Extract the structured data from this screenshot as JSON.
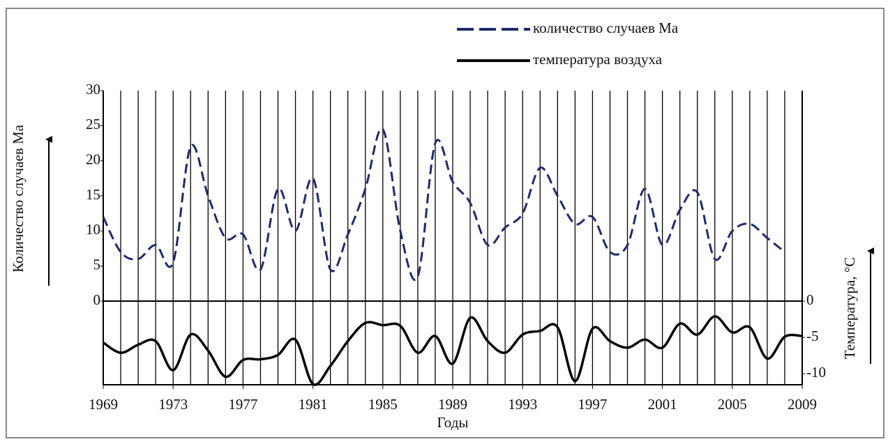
{
  "chart_data": {
    "type": "line",
    "xlabel": "Годы",
    "ylabel": "Количество случаев Ма",
    "y2label": "Температура, °С",
    "x": [
      1969,
      1970,
      1971,
      1972,
      1973,
      1974,
      1975,
      1976,
      1977,
      1978,
      1979,
      1980,
      1981,
      1982,
      1983,
      1984,
      1985,
      1986,
      1987,
      1988,
      1989,
      1990,
      1991,
      1992,
      1993,
      1994,
      1995,
      1996,
      1997,
      1998,
      1999,
      2000,
      2001,
      2002,
      2003,
      2004,
      2005,
      2006,
      2007,
      2008,
      2009
    ],
    "xlim": [
      1969,
      2009
    ],
    "xticks": [
      1969,
      1973,
      1977,
      1981,
      1985,
      1989,
      1993,
      1997,
      2001,
      2005,
      2009
    ],
    "ylim": [
      0,
      30
    ],
    "yticks": [
      0,
      5,
      10,
      15,
      20,
      25,
      30
    ],
    "y2lim": [
      -11.5,
      0
    ],
    "y2ticks": [
      0,
      -5,
      -10
    ],
    "grid": true,
    "series": [
      {
        "name": "количество случаев Ма",
        "color": "#1f2a6b",
        "dash": true,
        "values": [
          12,
          7,
          6,
          8,
          5.5,
          22,
          15,
          9,
          9.5,
          4.5,
          16,
          10,
          17.5,
          4.5,
          9.5,
          16,
          24.5,
          10,
          3.5,
          22.5,
          17,
          14,
          8,
          10.5,
          12.5,
          19,
          15,
          11,
          12,
          7,
          8,
          16,
          8,
          13,
          15.5,
          6,
          10,
          11,
          9,
          7,
          null
        ]
      },
      {
        "name": "температура воздуха",
        "color": "#000000",
        "dash": false,
        "axis": "y2",
        "values": [
          -5.7,
          -7.1,
          -6,
          -5.5,
          -9.5,
          -4.6,
          -6.8,
          -10.4,
          -8.1,
          -8,
          -7.4,
          -5.3,
          -11.4,
          -8.9,
          -5.5,
          -3,
          -3.3,
          -3.4,
          -7.1,
          -4.8,
          -8.6,
          -2.3,
          -5.5,
          -7.1,
          -4.6,
          -4.1,
          -3.6,
          -11,
          -3.8,
          -5.5,
          -6.4,
          -5.3,
          -6.4,
          -3.1,
          -4.6,
          -2.1,
          -4.3,
          -3.6,
          -7.9,
          -4.9,
          -4.8
        ]
      }
    ]
  }
}
